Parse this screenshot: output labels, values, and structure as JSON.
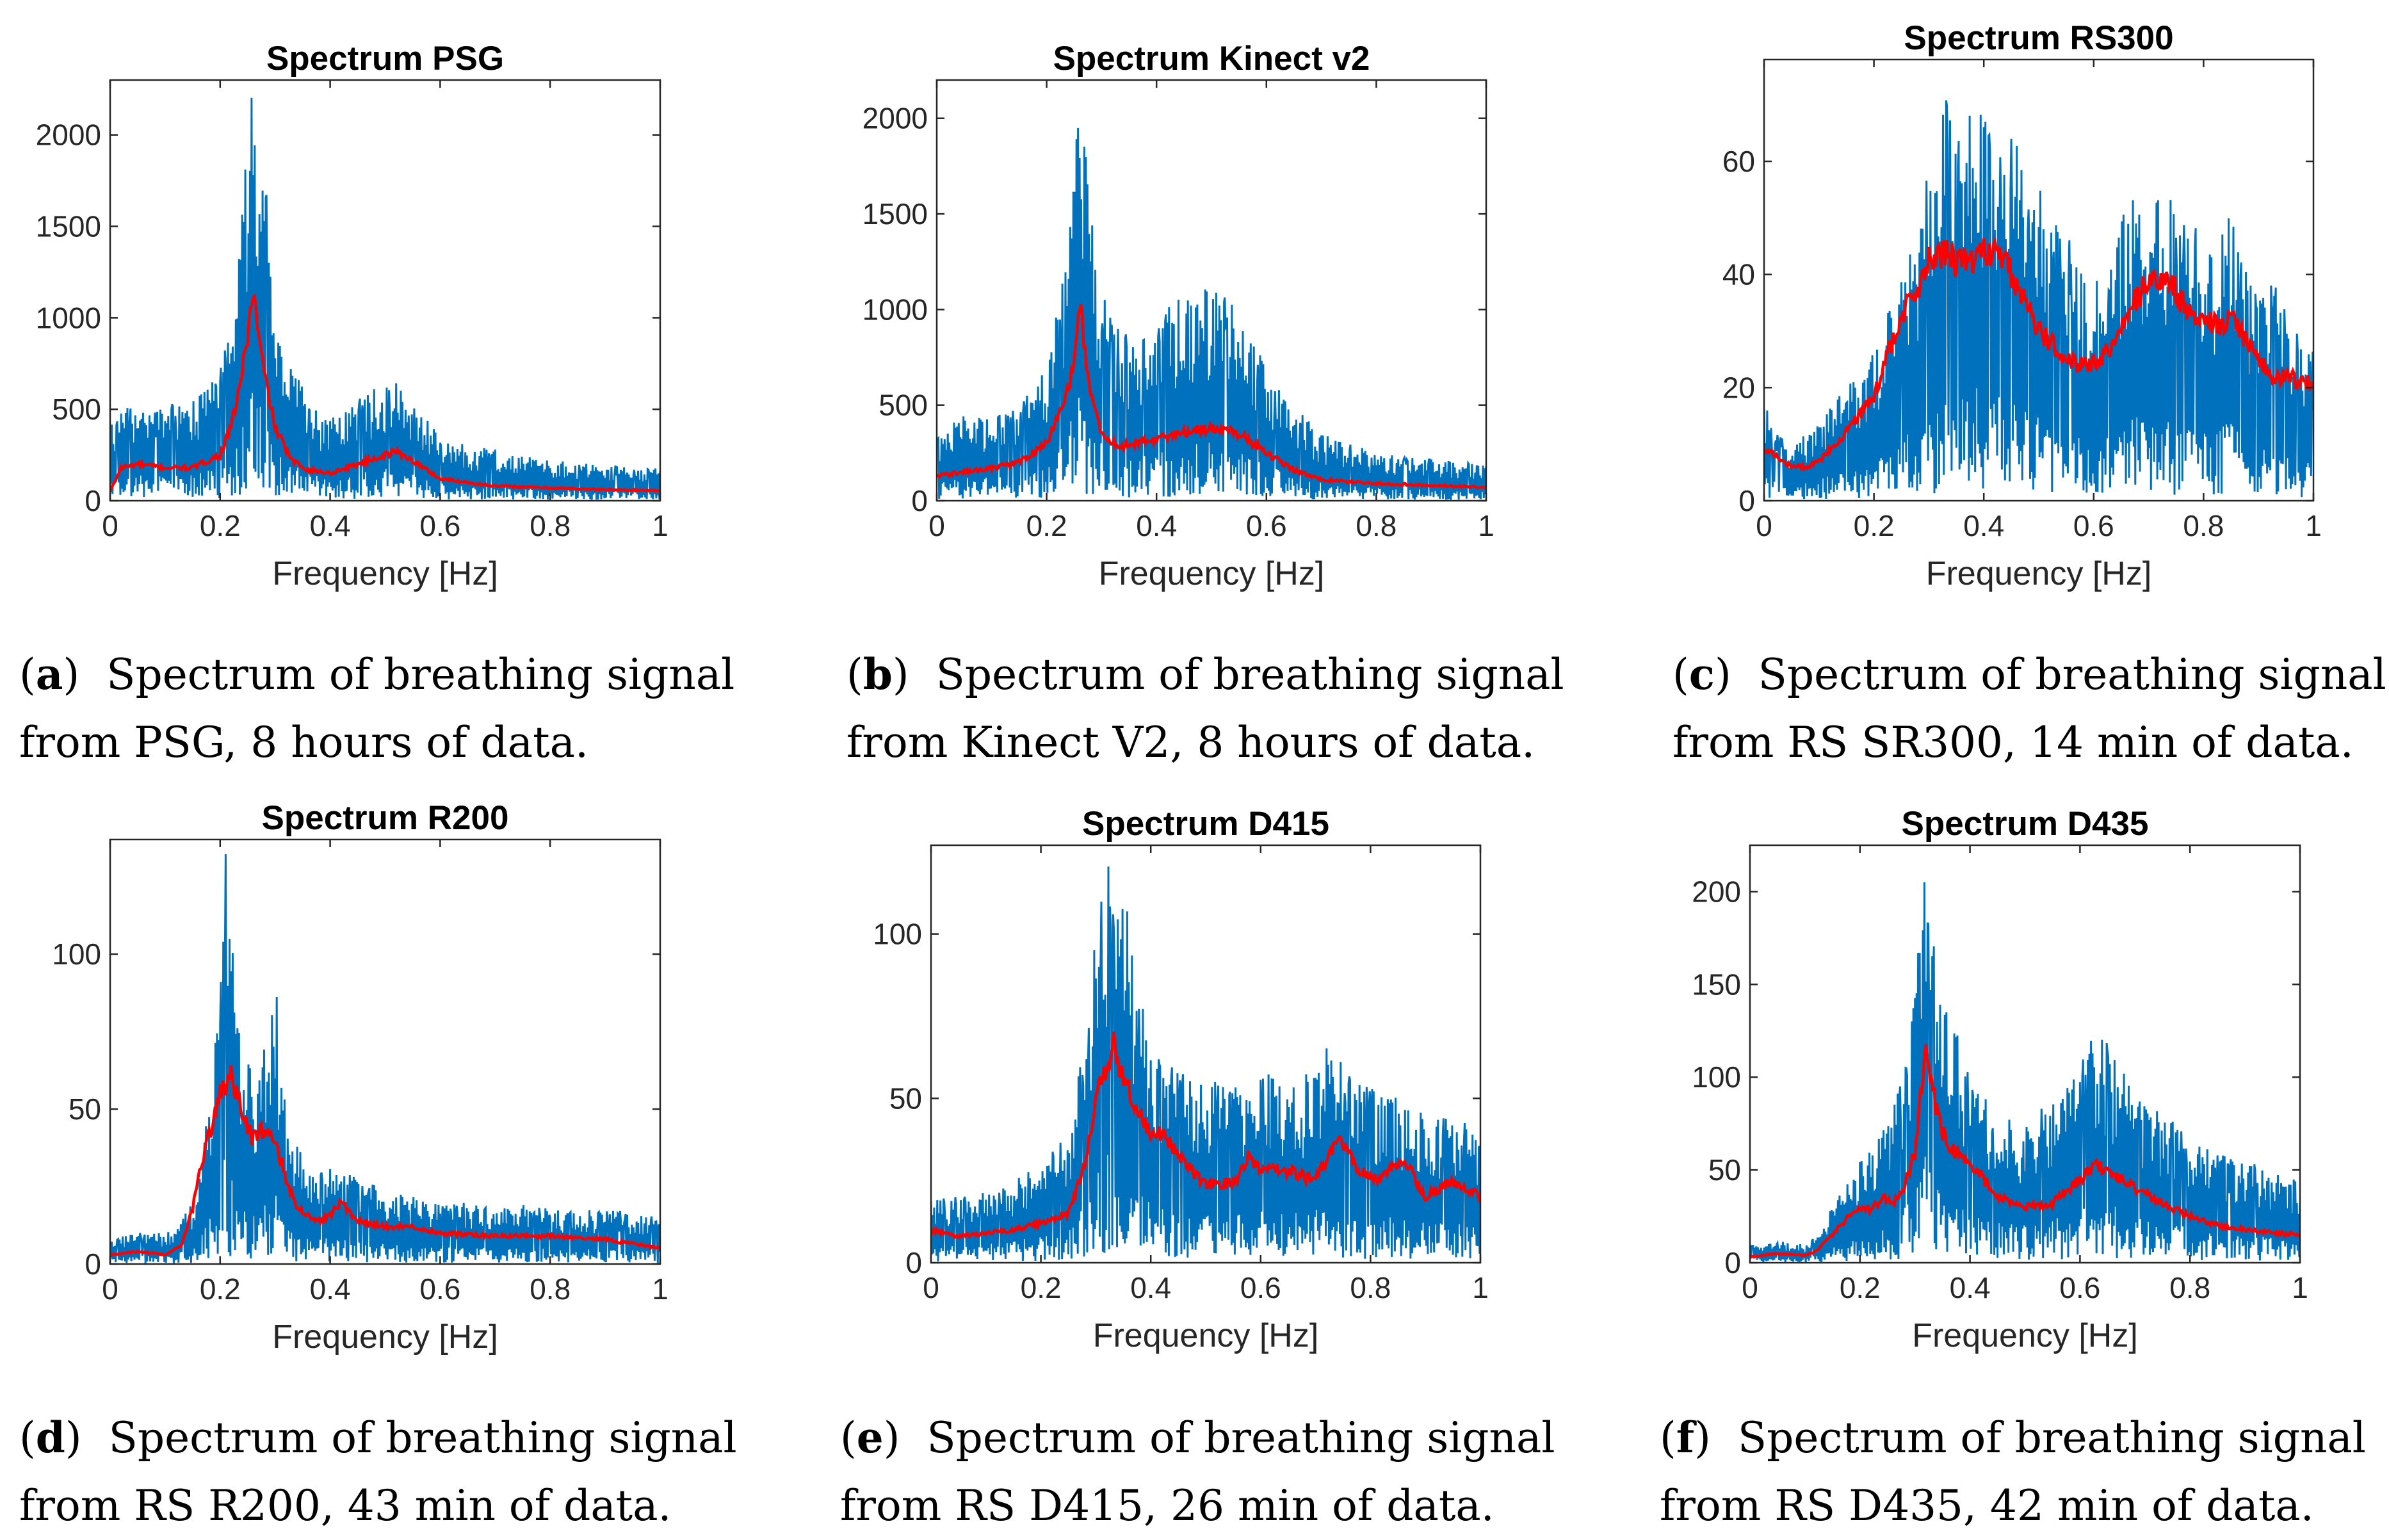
{
  "chart_data": [
    {
      "type": "line",
      "title": "Spectrum PSG",
      "xlabel": "Frequency [Hz]",
      "ylabel": "",
      "xlim": [
        0,
        1
      ],
      "ylim": [
        0,
        2300
      ],
      "xticks": [
        "0",
        "0.2",
        "0.4",
        "0.6",
        "0.8",
        "1"
      ],
      "yticks": [
        "0",
        "500",
        "1000",
        "1500",
        "2000"
      ],
      "yvals": [
        0,
        500,
        1000,
        1500,
        2000
      ],
      "raw_color": "#0072BD",
      "smooth_color": "#FF0000",
      "raw_series": {
        "x": [
          0,
          0.02,
          0.05,
          0.1,
          0.15,
          0.2,
          0.22,
          0.24,
          0.25,
          0.26,
          0.27,
          0.28,
          0.3,
          0.33,
          0.36,
          0.4,
          0.45,
          0.5,
          0.52,
          0.55,
          0.6,
          0.65,
          0.7,
          0.8,
          0.9,
          1.0
        ],
        "y": [
          450,
          500,
          520,
          520,
          550,
          700,
          1100,
          1600,
          2000,
          2300,
          2000,
          1800,
          1200,
          750,
          550,
          450,
          550,
          650,
          650,
          550,
          350,
          300,
          280,
          230,
          200,
          180
        ]
      },
      "smooth_series": {
        "x": [
          0,
          0.02,
          0.05,
          0.1,
          0.15,
          0.2,
          0.22,
          0.24,
          0.25,
          0.26,
          0.27,
          0.28,
          0.3,
          0.33,
          0.36,
          0.4,
          0.45,
          0.5,
          0.52,
          0.55,
          0.6,
          0.7,
          0.8,
          0.9,
          1.0
        ],
        "y": [
          50,
          180,
          200,
          180,
          180,
          250,
          400,
          700,
          900,
          1150,
          900,
          700,
          400,
          220,
          170,
          150,
          200,
          250,
          270,
          220,
          120,
          80,
          70,
          60,
          55
        ]
      }
    },
    {
      "type": "line",
      "title": "Spectrum Kinect v2",
      "xlabel": "Frequency [Hz]",
      "ylabel": "",
      "xlim": [
        0,
        1
      ],
      "ylim": [
        0,
        2200
      ],
      "xticks": [
        "0",
        "0.2",
        "0.4",
        "0.6",
        "0.8",
        "1"
      ],
      "yticks": [
        "0",
        "500",
        "1000",
        "1500",
        "2000"
      ],
      "yvals": [
        0,
        500,
        1000,
        1500,
        2000
      ],
      "raw_color": "#0072BD",
      "smooth_color": "#FF0000",
      "raw_series": {
        "x": [
          0,
          0.05,
          0.1,
          0.15,
          0.2,
          0.23,
          0.25,
          0.26,
          0.27,
          0.28,
          0.3,
          0.33,
          0.36,
          0.4,
          0.45,
          0.5,
          0.55,
          0.6,
          0.65,
          0.7,
          0.8,
          0.9,
          1.0
        ],
        "y": [
          350,
          450,
          450,
          500,
          700,
          1200,
          1700,
          2200,
          1900,
          1500,
          1100,
          900,
          850,
          950,
          1100,
          1150,
          1000,
          700,
          500,
          350,
          250,
          220,
          200
        ]
      },
      "smooth_series": {
        "x": [
          0,
          0.05,
          0.1,
          0.15,
          0.2,
          0.23,
          0.25,
          0.26,
          0.27,
          0.28,
          0.3,
          0.33,
          0.36,
          0.4,
          0.45,
          0.5,
          0.55,
          0.6,
          0.65,
          0.7,
          0.8,
          0.9,
          1.0
        ],
        "y": [
          130,
          150,
          170,
          200,
          300,
          500,
          700,
          1050,
          800,
          550,
          350,
          280,
          300,
          320,
          360,
          380,
          350,
          250,
          160,
          110,
          90,
          80,
          70
        ]
      }
    },
    {
      "type": "line",
      "title": "Spectrum RS300",
      "xlabel": "Frequency [Hz]",
      "ylabel": "",
      "xlim": [
        0,
        1
      ],
      "ylim": [
        0,
        78
      ],
      "xticks": [
        "0",
        "0.2",
        "0.4",
        "0.6",
        "0.8",
        "1"
      ],
      "yticks": [
        "0",
        "20",
        "40",
        "60"
      ],
      "yvals": [
        0,
        20,
        40,
        60
      ],
      "raw_color": "#0072BD",
      "smooth_color": "#FF0000",
      "raw_series": {
        "x": [
          0,
          0.02,
          0.05,
          0.08,
          0.1,
          0.12,
          0.15,
          0.18,
          0.2,
          0.23,
          0.25,
          0.28,
          0.3,
          0.33,
          0.35,
          0.38,
          0.4,
          0.42,
          0.45,
          0.48,
          0.5,
          0.52,
          0.55,
          0.58,
          0.6,
          0.63,
          0.65,
          0.68,
          0.7,
          0.73,
          0.75,
          0.78,
          0.8,
          0.83,
          0.85,
          0.88,
          0.9,
          0.93,
          0.95,
          0.98,
          1.0
        ],
        "y": [
          18,
          12,
          10,
          12,
          14,
          18,
          20,
          24,
          26,
          35,
          40,
          50,
          60,
          72,
          68,
          78,
          72,
          70,
          66,
          60,
          56,
          50,
          48,
          40,
          38,
          44,
          50,
          58,
          54,
          55,
          52,
          50,
          44,
          48,
          52,
          40,
          36,
          40,
          36,
          30,
          28
        ]
      },
      "smooth_series": {
        "x": [
          0,
          0.02,
          0.05,
          0.08,
          0.1,
          0.12,
          0.15,
          0.18,
          0.2,
          0.22,
          0.25,
          0.28,
          0.3,
          0.33,
          0.35,
          0.38,
          0.4,
          0.43,
          0.45,
          0.48,
          0.5,
          0.53,
          0.55,
          0.58,
          0.6,
          0.63,
          0.65,
          0.68,
          0.7,
          0.72,
          0.75,
          0.78,
          0.8,
          0.83,
          0.85,
          0.88,
          0.9,
          0.93,
          0.95,
          0.98,
          1.0
        ],
        "y": [
          9,
          8,
          6,
          6,
          7,
          9,
          12,
          16,
          18,
          25,
          32,
          38,
          42,
          44,
          42,
          43,
          44,
          44,
          40,
          34,
          30,
          27,
          25,
          24,
          24,
          27,
          30,
          36,
          39,
          39,
          37,
          32,
          32,
          31,
          32,
          28,
          25,
          22,
          22,
          21,
          21
        ]
      }
    },
    {
      "type": "line",
      "title": "Spectrum R200",
      "xlabel": "Frequency [Hz]",
      "ylabel": "",
      "xlim": [
        0,
        1
      ],
      "ylim": [
        0,
        137
      ],
      "xticks": [
        "0",
        "0.2",
        "0.4",
        "0.6",
        "0.8",
        "1"
      ],
      "yticks": [
        "0",
        "50",
        "100"
      ],
      "yvals": [
        0,
        50,
        100
      ],
      "raw_color": "#0072BD",
      "smooth_color": "#FF0000",
      "raw_series": {
        "x": [
          0,
          0.05,
          0.1,
          0.12,
          0.15,
          0.17,
          0.19,
          0.2,
          0.21,
          0.22,
          0.23,
          0.25,
          0.27,
          0.29,
          0.3,
          0.31,
          0.33,
          0.35,
          0.38,
          0.4,
          0.45,
          0.5,
          0.6,
          0.7,
          0.8,
          0.9,
          1.0
        ],
        "y": [
          8,
          10,
          10,
          12,
          20,
          40,
          70,
          90,
          140,
          110,
          80,
          65,
          60,
          85,
          98,
          60,
          45,
          35,
          30,
          32,
          28,
          24,
          20,
          20,
          18,
          18,
          15
        ]
      },
      "smooth_series": {
        "x": [
          0,
          0.05,
          0.1,
          0.13,
          0.15,
          0.17,
          0.19,
          0.2,
          0.22,
          0.24,
          0.26,
          0.28,
          0.3,
          0.32,
          0.34,
          0.36,
          0.38,
          0.4,
          0.42,
          0.45,
          0.5,
          0.55,
          0.6,
          0.7,
          0.8,
          0.9,
          1.0
        ],
        "y": [
          3,
          4,
          3,
          6,
          18,
          35,
          48,
          55,
          60,
          48,
          40,
          44,
          40,
          28,
          18,
          16,
          14,
          16,
          20,
          14,
          12,
          12,
          10,
          9,
          9,
          8,
          5
        ]
      }
    },
    {
      "type": "line",
      "title": "Spectrum D415",
      "xlabel": "Frequency [Hz]",
      "ylabel": "",
      "xlim": [
        0,
        1
      ],
      "ylim": [
        0,
        127
      ],
      "xticks": [
        "0",
        "0.2",
        "0.4",
        "0.6",
        "0.8",
        "1"
      ],
      "yticks": [
        "0",
        "50",
        "100"
      ],
      "yvals": [
        0,
        50,
        100
      ],
      "raw_color": "#0072BD",
      "smooth_color": "#FF0000",
      "raw_series": {
        "x": [
          0,
          0.05,
          0.1,
          0.15,
          0.2,
          0.25,
          0.28,
          0.3,
          0.32,
          0.33,
          0.34,
          0.35,
          0.37,
          0.4,
          0.45,
          0.5,
          0.55,
          0.6,
          0.65,
          0.7,
          0.73,
          0.75,
          0.8,
          0.85,
          0.9,
          0.95,
          1.0
        ],
        "y": [
          20,
          20,
          22,
          25,
          30,
          40,
          70,
          100,
          127,
          110,
          127,
          120,
          90,
          70,
          60,
          55,
          55,
          60,
          55,
          60,
          70,
          60,
          55,
          50,
          45,
          45,
          40
        ]
      },
      "smooth_series": {
        "x": [
          0,
          0.05,
          0.1,
          0.15,
          0.2,
          0.25,
          0.28,
          0.3,
          0.32,
          0.33,
          0.34,
          0.36,
          0.38,
          0.4,
          0.42,
          0.45,
          0.5,
          0.55,
          0.58,
          0.6,
          0.65,
          0.7,
          0.74,
          0.78,
          0.82,
          0.86,
          0.9,
          0.95,
          1.0
        ],
        "y": [
          10,
          8,
          9,
          10,
          12,
          15,
          30,
          50,
          60,
          67,
          62,
          52,
          45,
          38,
          40,
          32,
          24,
          24,
          32,
          28,
          28,
          25,
          37,
          28,
          25,
          32,
          20,
          25,
          20
        ]
      }
    },
    {
      "type": "line",
      "title": "Spectrum D435",
      "xlabel": "Frequency [Hz]",
      "ylabel": "",
      "xlim": [
        0,
        1
      ],
      "ylim": [
        0,
        225
      ],
      "xticks": [
        "0",
        "0.2",
        "0.4",
        "0.6",
        "0.8",
        "1"
      ],
      "yticks": [
        "0",
        "50",
        "100",
        "150",
        "200"
      ],
      "yvals": [
        0,
        50,
        100,
        150,
        200
      ],
      "raw_color": "#0072BD",
      "smooth_color": "#FF0000",
      "raw_series": {
        "x": [
          0,
          0.05,
          0.1,
          0.12,
          0.15,
          0.18,
          0.2,
          0.23,
          0.25,
          0.28,
          0.3,
          0.31,
          0.32,
          0.33,
          0.35,
          0.38,
          0.4,
          0.45,
          0.5,
          0.55,
          0.6,
          0.63,
          0.66,
          0.7,
          0.75,
          0.8,
          0.85,
          0.9,
          0.95,
          1.0
        ],
        "y": [
          10,
          12,
          10,
          15,
          30,
          45,
          55,
          65,
          75,
          110,
          160,
          200,
          225,
          180,
          150,
          120,
          100,
          80,
          75,
          90,
          110,
          125,
          115,
          90,
          80,
          70,
          60,
          55,
          50,
          45
        ]
      },
      "smooth_series": {
        "x": [
          0,
          0.05,
          0.1,
          0.12,
          0.15,
          0.18,
          0.2,
          0.22,
          0.24,
          0.26,
          0.28,
          0.3,
          0.31,
          0.32,
          0.33,
          0.35,
          0.37,
          0.4,
          0.45,
          0.5,
          0.55,
          0.6,
          0.63,
          0.66,
          0.7,
          0.75,
          0.8,
          0.85,
          0.9,
          0.95,
          1.0
        ],
        "y": [
          3,
          5,
          4,
          6,
          15,
          25,
          30,
          28,
          35,
          32,
          40,
          60,
          90,
          115,
          95,
          70,
          60,
          55,
          35,
          30,
          32,
          45,
          52,
          48,
          40,
          32,
          25,
          20,
          18,
          16,
          15
        ]
      }
    }
  ],
  "captions": [
    {
      "label": "a",
      "line1": "Spectrum of breathing signal",
      "line2": "from PSG, 8 hours of data."
    },
    {
      "label": "b",
      "line1": "Spectrum of breathing signal",
      "line2": "from Kinect V2, 8 hours of data."
    },
    {
      "label": "c",
      "line1": "Spectrum of breathing signal",
      "line2": "from RS SR300, 14 min of data."
    },
    {
      "label": "d",
      "line1": "Spectrum of breathing signal",
      "line2": "from RS R200, 43 min of data."
    },
    {
      "label": "e",
      "line1": "Spectrum of breathing signal",
      "line2": "from RS D415, 26 min of data."
    },
    {
      "label": "f",
      "line1": "Spectrum of breathing signal",
      "line2": "from RS D435, 42 min of data."
    }
  ]
}
